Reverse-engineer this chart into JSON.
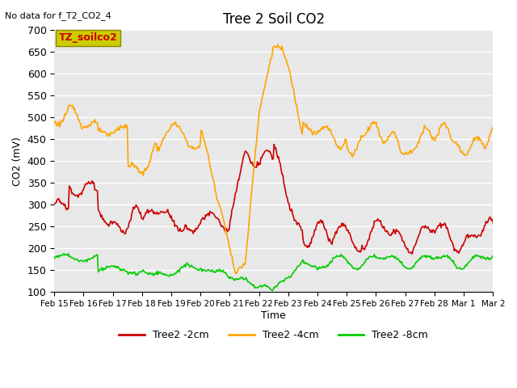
{
  "title": "Tree 2 Soil CO2",
  "subtitle": "No data for f_T2_CO2_4",
  "ylabel": "CO2 (mV)",
  "xlabel": "Time",
  "ylim": [
    100,
    700
  ],
  "legend_label": "TZ_soilco2",
  "bg_color": "#e8e8e8",
  "line_colors": {
    "2cm": "#cc0000",
    "4cm": "#ffa500",
    "8cm": "#00cc00"
  },
  "legend_entries": [
    "Tree2 -2cm",
    "Tree2 -4cm",
    "Tree2 -8cm"
  ],
  "x_tick_labels": [
    "Feb 15",
    "Feb 16",
    "Feb 17",
    "Feb 18",
    "Feb 19",
    "Feb 20",
    "Feb 21",
    "Feb 22",
    "Feb 23",
    "Feb 24",
    "Feb 25",
    "Feb 26",
    "Feb 27",
    "Feb 28",
    "Mar 1",
    "Mar 2"
  ],
  "annotation_box_color": "#cccc00",
  "annotation_text_color": "#cc0000"
}
